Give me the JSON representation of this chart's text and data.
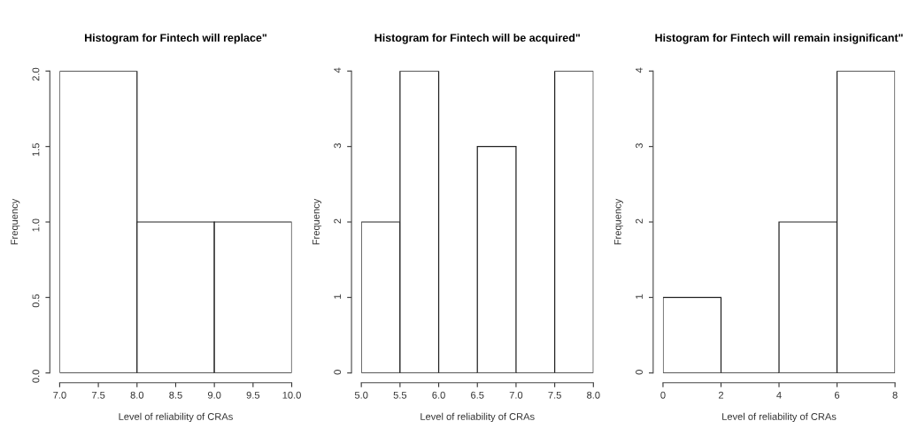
{
  "chart_data": [
    {
      "type": "histogram",
      "title": "Histogram for Fintech will replace\"",
      "xlabel": "Level of reliability of CRAs",
      "ylabel": "Frequency",
      "bins": [
        7,
        8,
        9,
        10
      ],
      "values": [
        2,
        1,
        1
      ],
      "xlim": [
        7,
        10
      ],
      "ylim": [
        0,
        2
      ],
      "xticks": [
        {
          "value": 7,
          "label": "7.0"
        },
        {
          "value": 7.5,
          "label": "7.5"
        },
        {
          "value": 8,
          "label": "8.0"
        },
        {
          "value": 8.5,
          "label": "8.5"
        },
        {
          "value": 9,
          "label": "9.0"
        },
        {
          "value": 9.5,
          "label": "9.5"
        },
        {
          "value": 10,
          "label": "10.0"
        }
      ],
      "yticks": [
        {
          "value": 0,
          "label": "0.0"
        },
        {
          "value": 0.5,
          "label": "0.5"
        },
        {
          "value": 1,
          "label": "1.0"
        },
        {
          "value": 1.5,
          "label": "1.5"
        },
        {
          "value": 2,
          "label": "2.0"
        }
      ],
      "grid": false
    },
    {
      "type": "histogram",
      "title": "Histogram for Fintech will be acquired\"",
      "xlabel": "Level of reliability of CRAs",
      "ylabel": "Frequency",
      "bins": [
        5,
        5.5,
        6,
        6.5,
        7,
        7.5,
        8
      ],
      "values": [
        2,
        4,
        0,
        3,
        0,
        4
      ],
      "xlim": [
        5,
        8
      ],
      "ylim": [
        0,
        4
      ],
      "xticks": [
        {
          "value": 5,
          "label": "5.0"
        },
        {
          "value": 5.5,
          "label": "5.5"
        },
        {
          "value": 6,
          "label": "6.0"
        },
        {
          "value": 6.5,
          "label": "6.5"
        },
        {
          "value": 7,
          "label": "7.0"
        },
        {
          "value": 7.5,
          "label": "7.5"
        },
        {
          "value": 8,
          "label": "8.0"
        }
      ],
      "yticks": [
        0,
        1,
        2,
        3,
        4
      ],
      "grid": false
    },
    {
      "type": "histogram",
      "title": "Histogram for Fintech will remain insignificant\"",
      "xlabel": "Level of reliability of CRAs",
      "ylabel": "Frequency",
      "bins": [
        0,
        2,
        4,
        6,
        8
      ],
      "values": [
        1,
        0,
        2,
        4
      ],
      "xlim": [
        0,
        8
      ],
      "ylim": [
        0,
        4
      ],
      "xticks": [
        0,
        2,
        4,
        6,
        8
      ],
      "yticks": [
        0,
        1,
        2,
        3,
        4
      ],
      "grid": false
    }
  ]
}
